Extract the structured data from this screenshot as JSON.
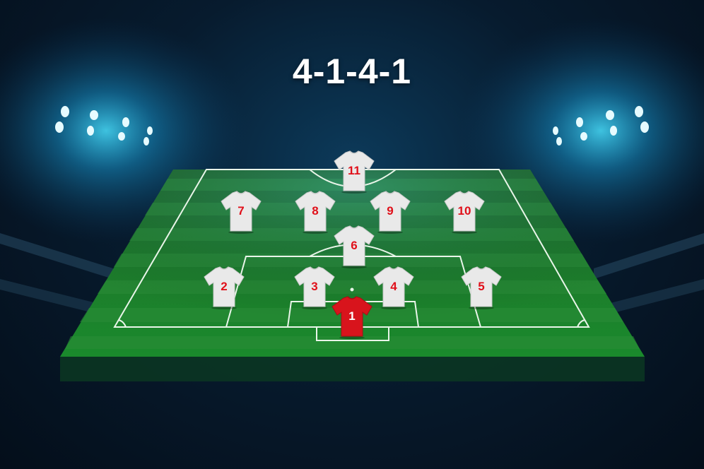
{
  "formation": {
    "label": "4-1-4-1"
  },
  "colors": {
    "pitch_green": "#1f7a2b",
    "outfield_kit": "#e9e9e9",
    "outfield_number": "#e0101a",
    "goalkeeper_kit": "#d8141c",
    "goalkeeper_number": "#ffffff",
    "floodlight": "#3fd3ff"
  },
  "players": [
    {
      "number": "11",
      "role": "striker"
    },
    {
      "number": "7",
      "role": "midfielder"
    },
    {
      "number": "8",
      "role": "midfielder"
    },
    {
      "number": "9",
      "role": "midfielder"
    },
    {
      "number": "10",
      "role": "midfielder"
    },
    {
      "number": "6",
      "role": "defensive-midfielder"
    },
    {
      "number": "2",
      "role": "defender"
    },
    {
      "number": "3",
      "role": "defender"
    },
    {
      "number": "4",
      "role": "defender"
    },
    {
      "number": "5",
      "role": "defender"
    },
    {
      "number": "1",
      "role": "goalkeeper"
    }
  ]
}
